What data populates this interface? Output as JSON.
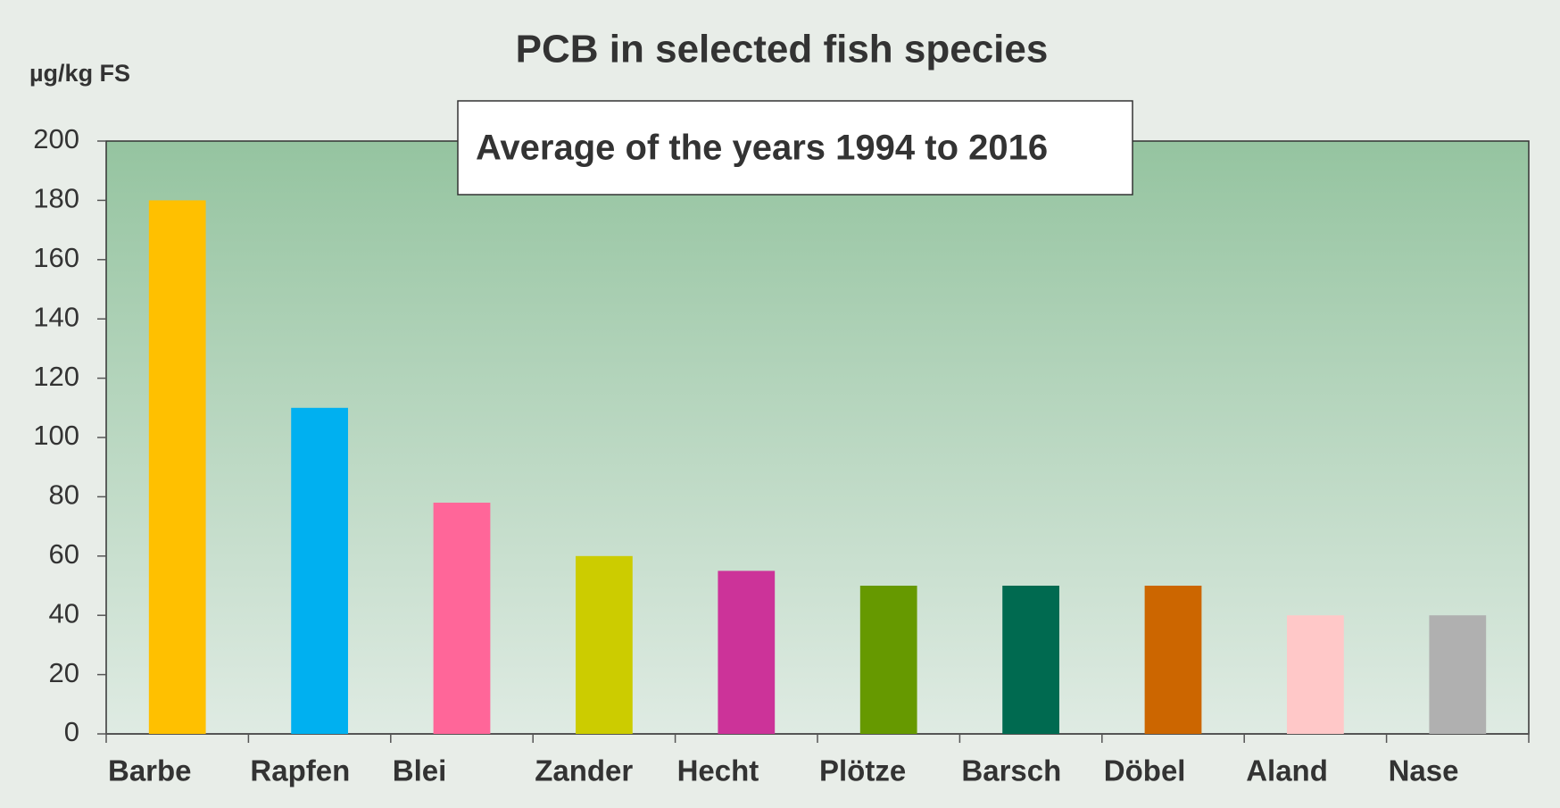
{
  "chart_data": {
    "type": "bar",
    "title": "PCB in selected fish species",
    "y_label": "µg/kg FS",
    "annotation": "Average of the years 1994 to 2016",
    "categories": [
      "Barbe",
      "Rapfen",
      "Blei",
      "Zander",
      "Hecht",
      "Plötze",
      "Barsch",
      "Döbel",
      "Aland",
      "Nase"
    ],
    "values": [
      180,
      110,
      78,
      60,
      55,
      50,
      50,
      50,
      40,
      40
    ],
    "colors": [
      "#ffc000",
      "#00b0f0",
      "#ff6699",
      "#cccc00",
      "#cc3399",
      "#669900",
      "#006a50",
      "#cc6600",
      "#ffc8c8",
      "#b0b0b0"
    ],
    "ylim": [
      0,
      200
    ],
    "yticks": [
      0,
      20,
      40,
      60,
      80,
      100,
      120,
      140,
      160,
      180,
      200
    ],
    "grid": false
  }
}
